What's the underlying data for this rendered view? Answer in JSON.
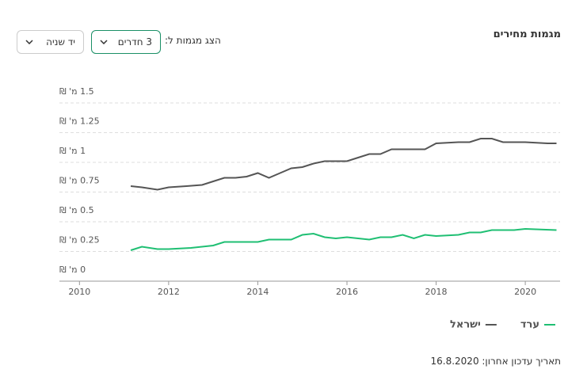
{
  "header": {
    "title": "מגמות מחירים",
    "filter_label": "הצג מגמות ל:",
    "rooms": "3 חדרים",
    "condition": "יד שניה"
  },
  "chart_data": {
    "type": "line",
    "xlim": [
      2009.55,
      2020.78
    ],
    "xticks": [
      2010,
      2012,
      2014,
      2016,
      2018,
      2020
    ],
    "ylim": [
      0,
      1.5
    ],
    "yticks": [
      {
        "value": 0,
        "label": "0 מ' ₪"
      },
      {
        "value": 0.25,
        "label": "0.25 מ' ₪"
      },
      {
        "value": 0.5,
        "label": "0.5 מ' ₪"
      },
      {
        "value": 0.75,
        "label": "0.75 מ' ₪"
      },
      {
        "value": 1,
        "label": "1 מ' ₪"
      },
      {
        "value": 1.25,
        "label": "1.25 מ' ₪"
      },
      {
        "value": 1.5,
        "label": "1.5 מ' ₪"
      }
    ],
    "grid": true,
    "series": [
      {
        "name": "ערד",
        "color": "#1fbf73",
        "x": [
          2011.15,
          2011.4,
          2011.75,
          2012.0,
          2012.5,
          2013.0,
          2013.25,
          2013.75,
          2014.0,
          2014.25,
          2014.75,
          2015.0,
          2015.25,
          2015.5,
          2015.75,
          2016.0,
          2016.5,
          2016.75,
          2017.0,
          2017.25,
          2017.5,
          2017.75,
          2018.0,
          2018.5,
          2018.75,
          2019.0,
          2019.25,
          2019.75,
          2020.0,
          2020.7
        ],
        "values": [
          0.26,
          0.29,
          0.27,
          0.27,
          0.28,
          0.3,
          0.33,
          0.33,
          0.33,
          0.35,
          0.35,
          0.39,
          0.4,
          0.37,
          0.36,
          0.37,
          0.35,
          0.37,
          0.37,
          0.39,
          0.36,
          0.39,
          0.38,
          0.39,
          0.41,
          0.41,
          0.43,
          0.43,
          0.44,
          0.43
        ]
      },
      {
        "name": "ישראל",
        "color": "#555555",
        "x": [
          2011.15,
          2011.4,
          2011.75,
          2012.0,
          2012.4,
          2012.75,
          2013.0,
          2013.25,
          2013.5,
          2013.75,
          2014.0,
          2014.25,
          2014.5,
          2014.75,
          2015.0,
          2015.25,
          2015.5,
          2015.75,
          2016.0,
          2016.25,
          2016.5,
          2016.75,
          2017.0,
          2017.25,
          2017.5,
          2017.75,
          2018.0,
          2018.5,
          2018.75,
          2019.0,
          2019.25,
          2019.5,
          2020.0,
          2020.5,
          2020.7
        ],
        "values": [
          0.8,
          0.79,
          0.77,
          0.79,
          0.8,
          0.81,
          0.84,
          0.87,
          0.87,
          0.88,
          0.91,
          0.87,
          0.91,
          0.95,
          0.96,
          0.99,
          1.01,
          1.01,
          1.01,
          1.04,
          1.07,
          1.07,
          1.11,
          1.11,
          1.11,
          1.11,
          1.16,
          1.17,
          1.17,
          1.2,
          1.2,
          1.17,
          1.17,
          1.16,
          1.16
        ]
      }
    ]
  },
  "footer": {
    "updated": "תאריך עדכון אחרון: 16.8.2020"
  }
}
